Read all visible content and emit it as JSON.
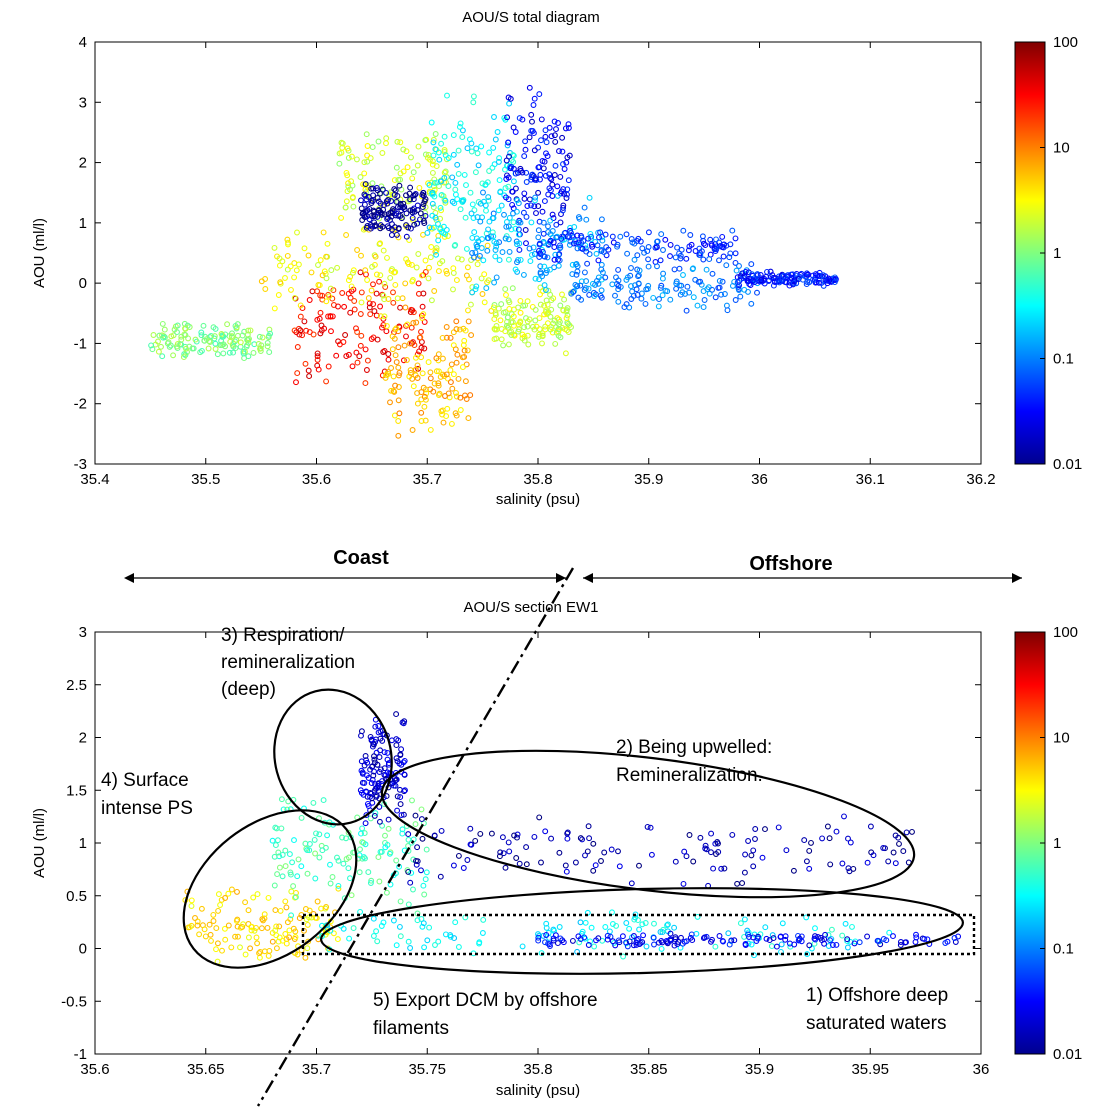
{
  "colorbar": {
    "ticks": [
      "100",
      "10",
      "1",
      "0.1",
      "0.01"
    ],
    "scale": "log",
    "range": [
      0.01,
      100
    ],
    "colormap": "jet"
  },
  "regions": {
    "coast_label": "Coast",
    "offshore_label": "Offshore"
  },
  "chart_data": [
    {
      "type": "scatter",
      "title": "AOU/S total diagram",
      "xlabel": "salinity (psu)",
      "ylabel": "AOU (ml/l)",
      "xlim": [
        35.4,
        36.2
      ],
      "ylim": [
        -3,
        4
      ],
      "xticks": [
        "35.4",
        "35.5",
        "35.6",
        "35.7",
        "35.8",
        "35.9",
        "36",
        "36.1",
        "36.2"
      ],
      "yticks": [
        "-3",
        "-2",
        "-1",
        "0",
        "1",
        "2",
        "3",
        "4"
      ],
      "color_variable_scale": "log",
      "clusters": [
        {
          "x": [
            35.45,
            35.56
          ],
          "y": [
            -1.3,
            -0.6
          ],
          "c": 1
        },
        {
          "x": [
            35.58,
            35.7
          ],
          "y": [
            -1.8,
            0.3
          ],
          "c": 30
        },
        {
          "x": [
            35.66,
            35.74
          ],
          "y": [
            -2.6,
            -0.3
          ],
          "c": 6
        },
        {
          "x": [
            35.55,
            35.76
          ],
          "y": [
            -0.6,
            1.0
          ],
          "c": 3
        },
        {
          "x": [
            35.62,
            35.72
          ],
          "y": [
            0.5,
            2.6
          ],
          "c": 2
        },
        {
          "x": [
            35.64,
            35.7
          ],
          "y": [
            0.7,
            1.7
          ],
          "c": 0.012
        },
        {
          "x": [
            35.7,
            35.78
          ],
          "y": [
            0.2,
            3.3
          ],
          "c": 0.3
        },
        {
          "x": [
            35.76,
            35.83
          ],
          "y": [
            -1.2,
            0.0
          ],
          "c": 2
        },
        {
          "x": [
            35.77,
            35.83
          ],
          "y": [
            0.2,
            3.4
          ],
          "c": 0.03
        },
        {
          "x": [
            35.74,
            35.86
          ],
          "y": [
            -0.3,
            1.6
          ],
          "c": 0.15
        },
        {
          "x": [
            35.8,
            35.98
          ],
          "y": [
            0.3,
            0.9
          ],
          "c": 0.05
        },
        {
          "x": [
            35.83,
            36.0
          ],
          "y": [
            -0.5,
            0.4
          ],
          "c": 0.1
        },
        {
          "x": [
            35.98,
            36.07
          ],
          "y": [
            -0.05,
            0.2
          ],
          "c": 0.04
        }
      ]
    },
    {
      "type": "scatter",
      "title": "AOU/S section EW1",
      "xlabel": "salinity (psu)",
      "ylabel": "AOU (ml/l)",
      "xlim": [
        35.6,
        36.0
      ],
      "ylim": [
        -1,
        3
      ],
      "xticks": [
        "35.6",
        "35.65",
        "35.7",
        "35.75",
        "35.8",
        "35.85",
        "35.9",
        "35.95",
        "36"
      ],
      "yticks": [
        "-1",
        "-0.5",
        "0",
        "0.5",
        "1",
        "1.5",
        "2",
        "2.5",
        "3"
      ],
      "color_variable_scale": "log",
      "clusters": [
        {
          "x": [
            35.64,
            35.71
          ],
          "y": [
            -0.2,
            0.6
          ],
          "c": 4
        },
        {
          "x": [
            35.68,
            35.75
          ],
          "y": [
            0.3,
            1.5
          ],
          "c": 0.6
        },
        {
          "x": [
            35.72,
            35.74
          ],
          "y": [
            1.1,
            2.3
          ],
          "c": 0.02
        },
        {
          "x": [
            35.74,
            35.97
          ],
          "y": [
            0.55,
            1.3
          ],
          "c": 0.015
        },
        {
          "x": [
            35.7,
            35.96
          ],
          "y": [
            -0.1,
            0.4
          ],
          "c": 0.3
        },
        {
          "x": [
            35.8,
            35.99
          ],
          "y": [
            0.0,
            0.15
          ],
          "c": 0.03
        }
      ],
      "annotations": [
        "3) Respiration/",
        "remineralization",
        "(deep)",
        "4) Surface",
        "intense PS",
        "2) Being upwelled:",
        "Remineralization.",
        "5) Export DCM by offshore",
        "filaments",
        "1) Offshore deep",
        "saturated waters"
      ]
    }
  ]
}
